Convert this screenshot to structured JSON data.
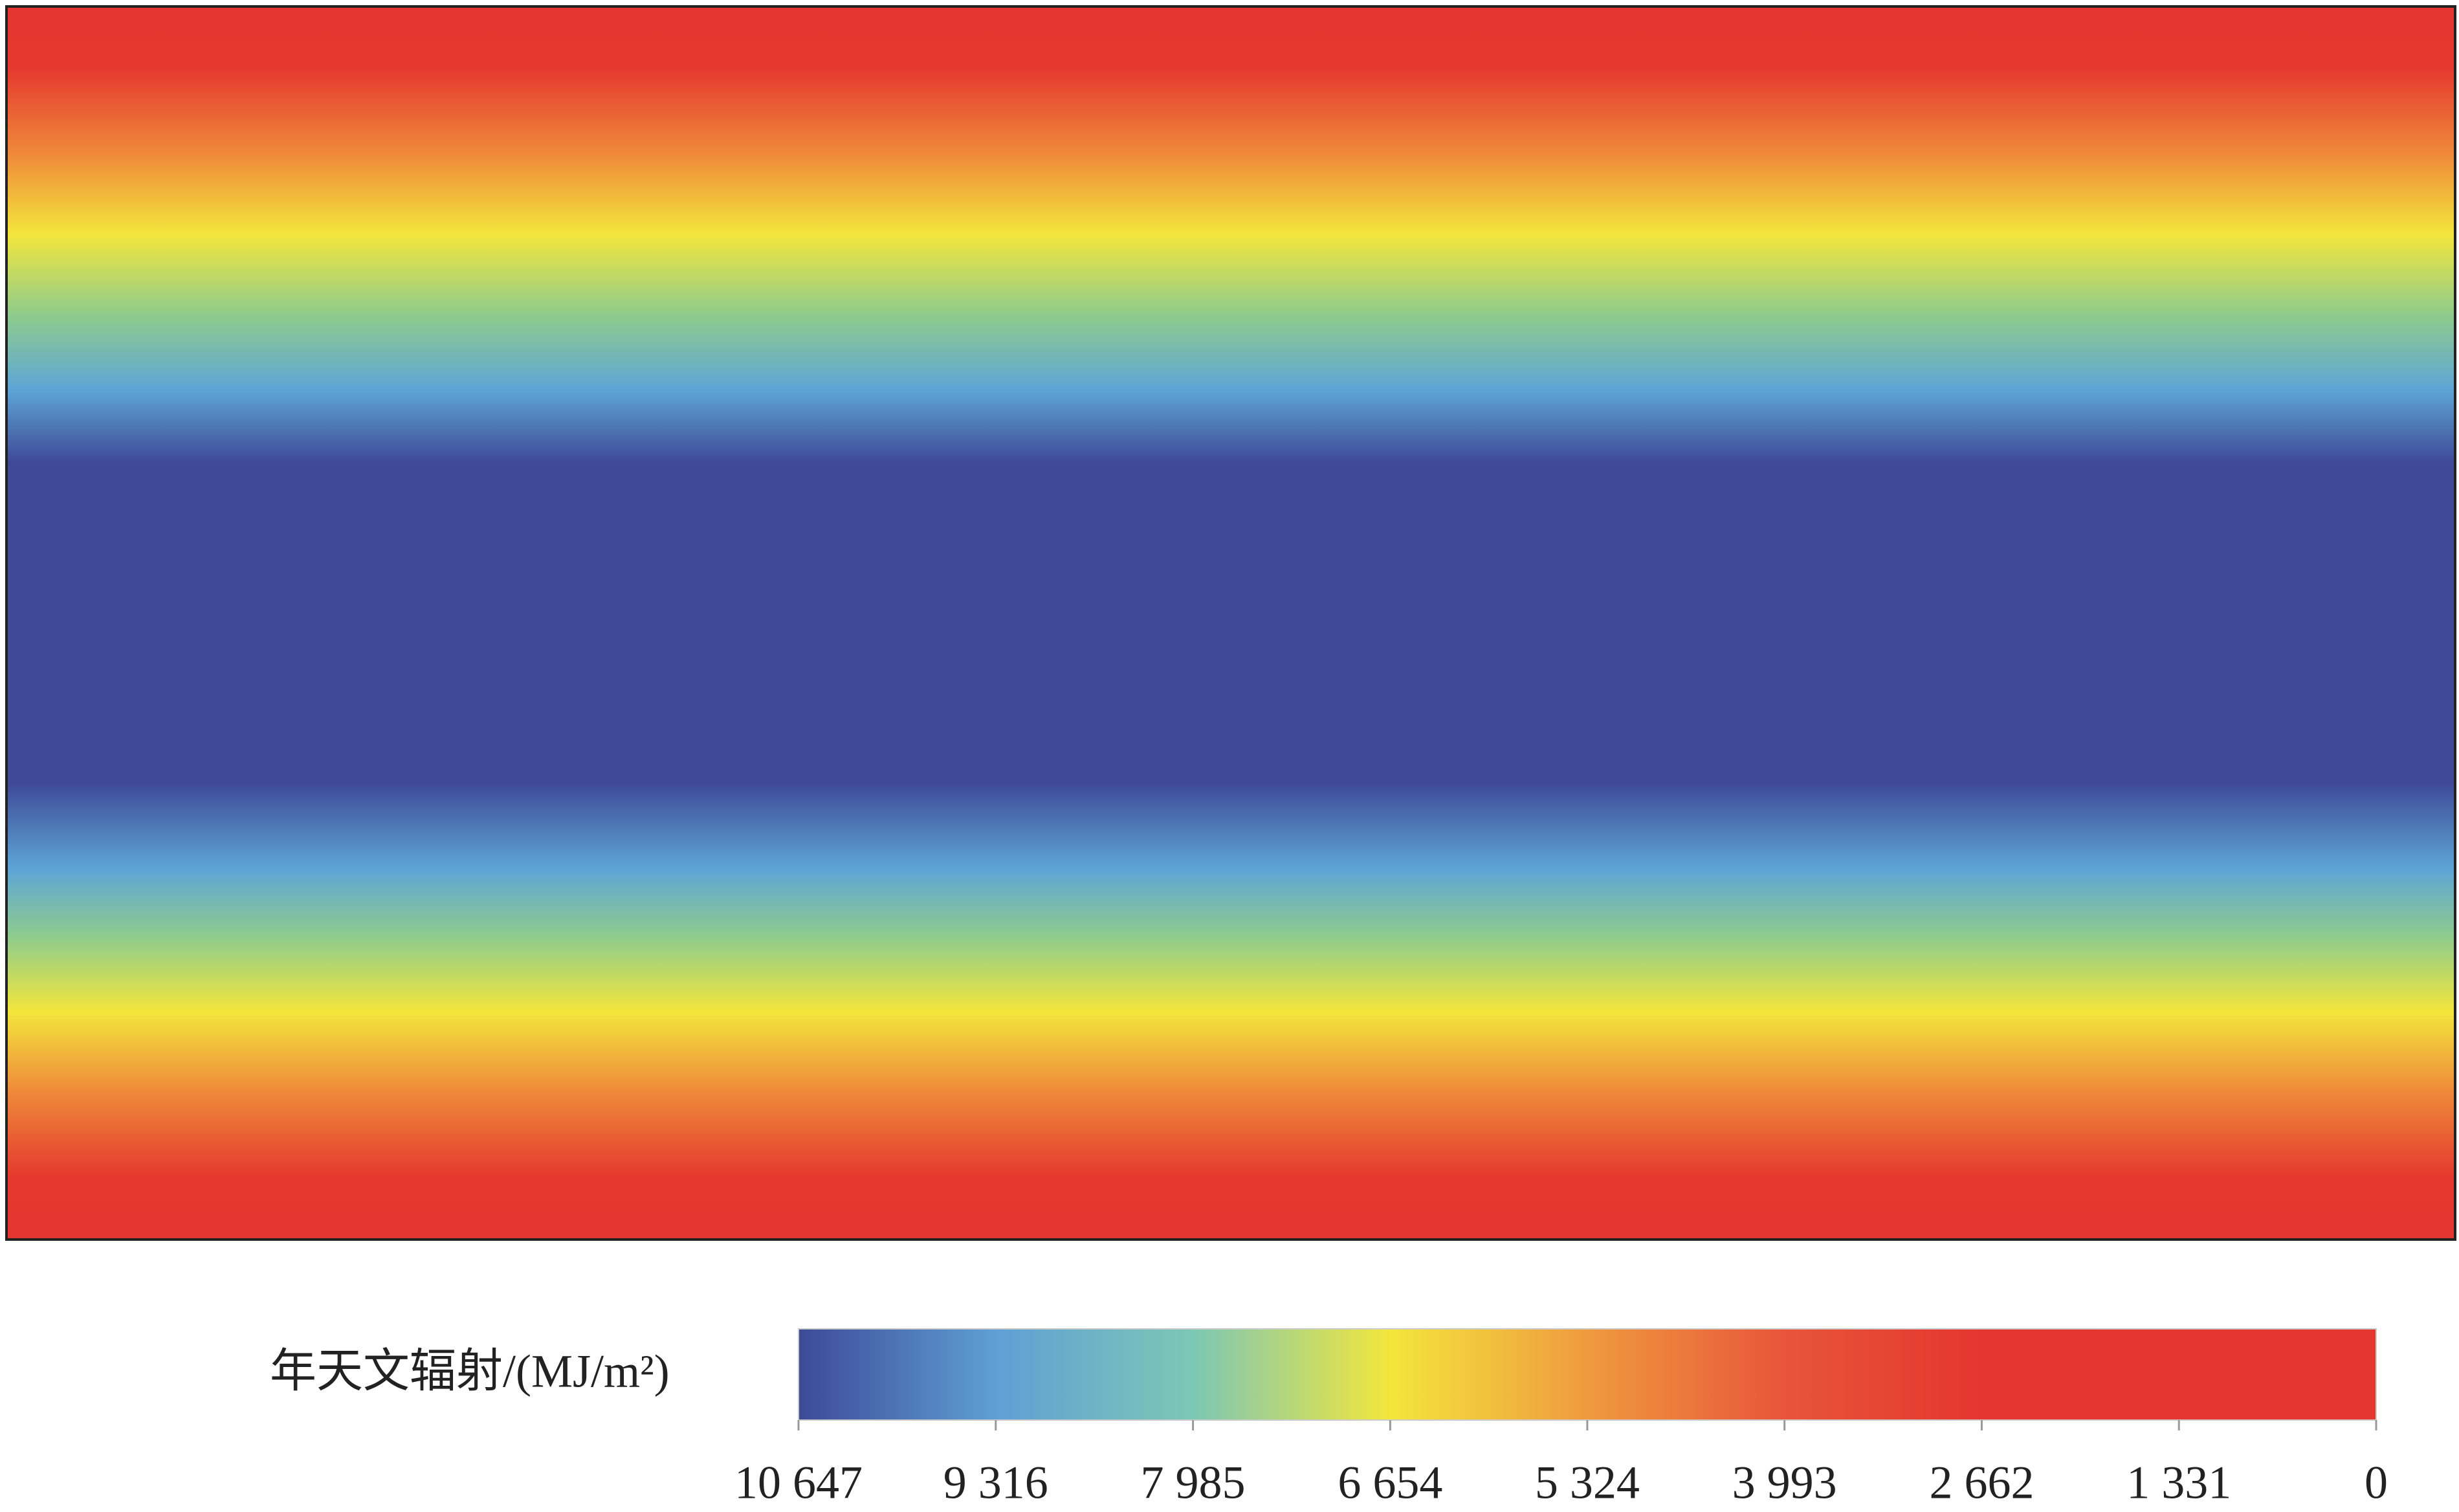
{
  "colorbar": {
    "label": "年天文辐射/(MJ/m²)",
    "lim": [
      10647,
      0
    ],
    "ticks": [
      {
        "value": 10647,
        "label": "10 647"
      },
      {
        "value": 9316,
        "label": "9 316"
      },
      {
        "value": 7985,
        "label": "7 985"
      },
      {
        "value": 6654,
        "label": "6 654"
      },
      {
        "value": 5324,
        "label": "5 324"
      },
      {
        "value": 3993,
        "label": "3 993"
      },
      {
        "value": 2662,
        "label": "2 662"
      },
      {
        "value": 1331,
        "label": "1 331"
      },
      0
    ],
    "colors": [
      "#3d4a96",
      "#5f9fd5",
      "#7cc7b5",
      "#f3e63c",
      "#ef9a3e",
      "#e8553a",
      "#e4362f",
      "#e4372f",
      "#e4372f"
    ]
  }
}
